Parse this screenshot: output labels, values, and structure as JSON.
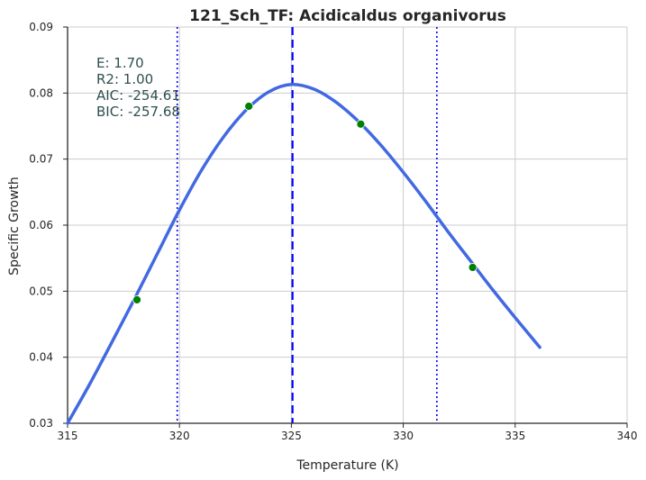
{
  "chart_data": {
    "type": "line",
    "title": "121_Sch_TF: Acidicaldus organivorus",
    "xlabel": "Temperature (K)",
    "ylabel": "Specific Growth",
    "xlim": [
      315,
      340
    ],
    "ylim": [
      0.03,
      0.09
    ],
    "x_ticks": [
      "315",
      "320",
      "325",
      "330",
      "335",
      "340"
    ],
    "y_ticks": [
      "0.03",
      "0.04",
      "0.05",
      "0.06",
      "0.07",
      "0.08",
      "0.09"
    ],
    "grid": true,
    "stats": [
      "E:  1.70",
      "R2:  1.00",
      "AIC: -254.61",
      "BIC: -257.68"
    ],
    "series": [
      {
        "kind": "fit-line",
        "color": "#4169e1",
        "x": [
          315.0,
          316.0,
          317.0,
          318.0,
          319.0,
          320.0,
          321.0,
          322.0,
          323.0,
          324.0,
          325.0,
          326.0,
          327.0,
          328.0,
          329.0,
          330.0,
          331.0,
          332.0,
          333.0,
          334.0,
          335.0,
          336.1
        ],
        "y": [
          0.03,
          0.036,
          0.0424,
          0.0489,
          0.0556,
          0.0623,
          0.0684,
          0.0735,
          0.0775,
          0.0802,
          0.0813,
          0.0806,
          0.0786,
          0.0757,
          0.0721,
          0.068,
          0.0636,
          0.059,
          0.0546,
          0.0502,
          0.046,
          0.0415
        ]
      },
      {
        "kind": "points",
        "color": "#008000",
        "x": [
          318.1,
          323.1,
          328.1,
          333.1
        ],
        "y": [
          0.0487,
          0.078,
          0.0753,
          0.0536
        ]
      }
    ],
    "vlines": [
      {
        "x": 319.9,
        "style": "dotted",
        "color": "#0000ff"
      },
      {
        "x": 325.05,
        "style": "dashed",
        "color": "#0000ff"
      },
      {
        "x": 331.5,
        "style": "dotted",
        "color": "#0000ff"
      }
    ]
  }
}
